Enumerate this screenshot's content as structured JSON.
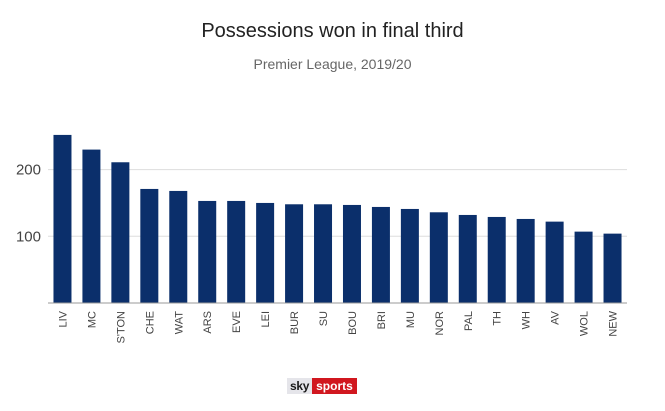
{
  "chart_data": {
    "type": "bar",
    "title": "Possessions won in final third",
    "subtitle": "Premier League, 2019/20",
    "xlabel": "",
    "ylabel": "",
    "categories": [
      "LIV",
      "MC",
      "S'TON",
      "CHE",
      "WAT",
      "ARS",
      "EVE",
      "LEI",
      "BUR",
      "SU",
      "BOU",
      "BRI",
      "MU",
      "NOR",
      "PAL",
      "TH",
      "WH",
      "AV",
      "WOL",
      "NEW"
    ],
    "values": [
      252,
      230,
      211,
      171,
      168,
      153,
      153,
      150,
      148,
      148,
      147,
      144,
      141,
      136,
      132,
      129,
      126,
      122,
      107,
      104
    ],
    "yticks": [
      100,
      200
    ],
    "ylim": [
      0,
      260
    ],
    "grid": true,
    "legend": "none",
    "bar_color": "#0b2f6b",
    "grid_color": "#dddddd"
  },
  "branding": {
    "logo_sky": "sky",
    "logo_sports": "sports"
  }
}
